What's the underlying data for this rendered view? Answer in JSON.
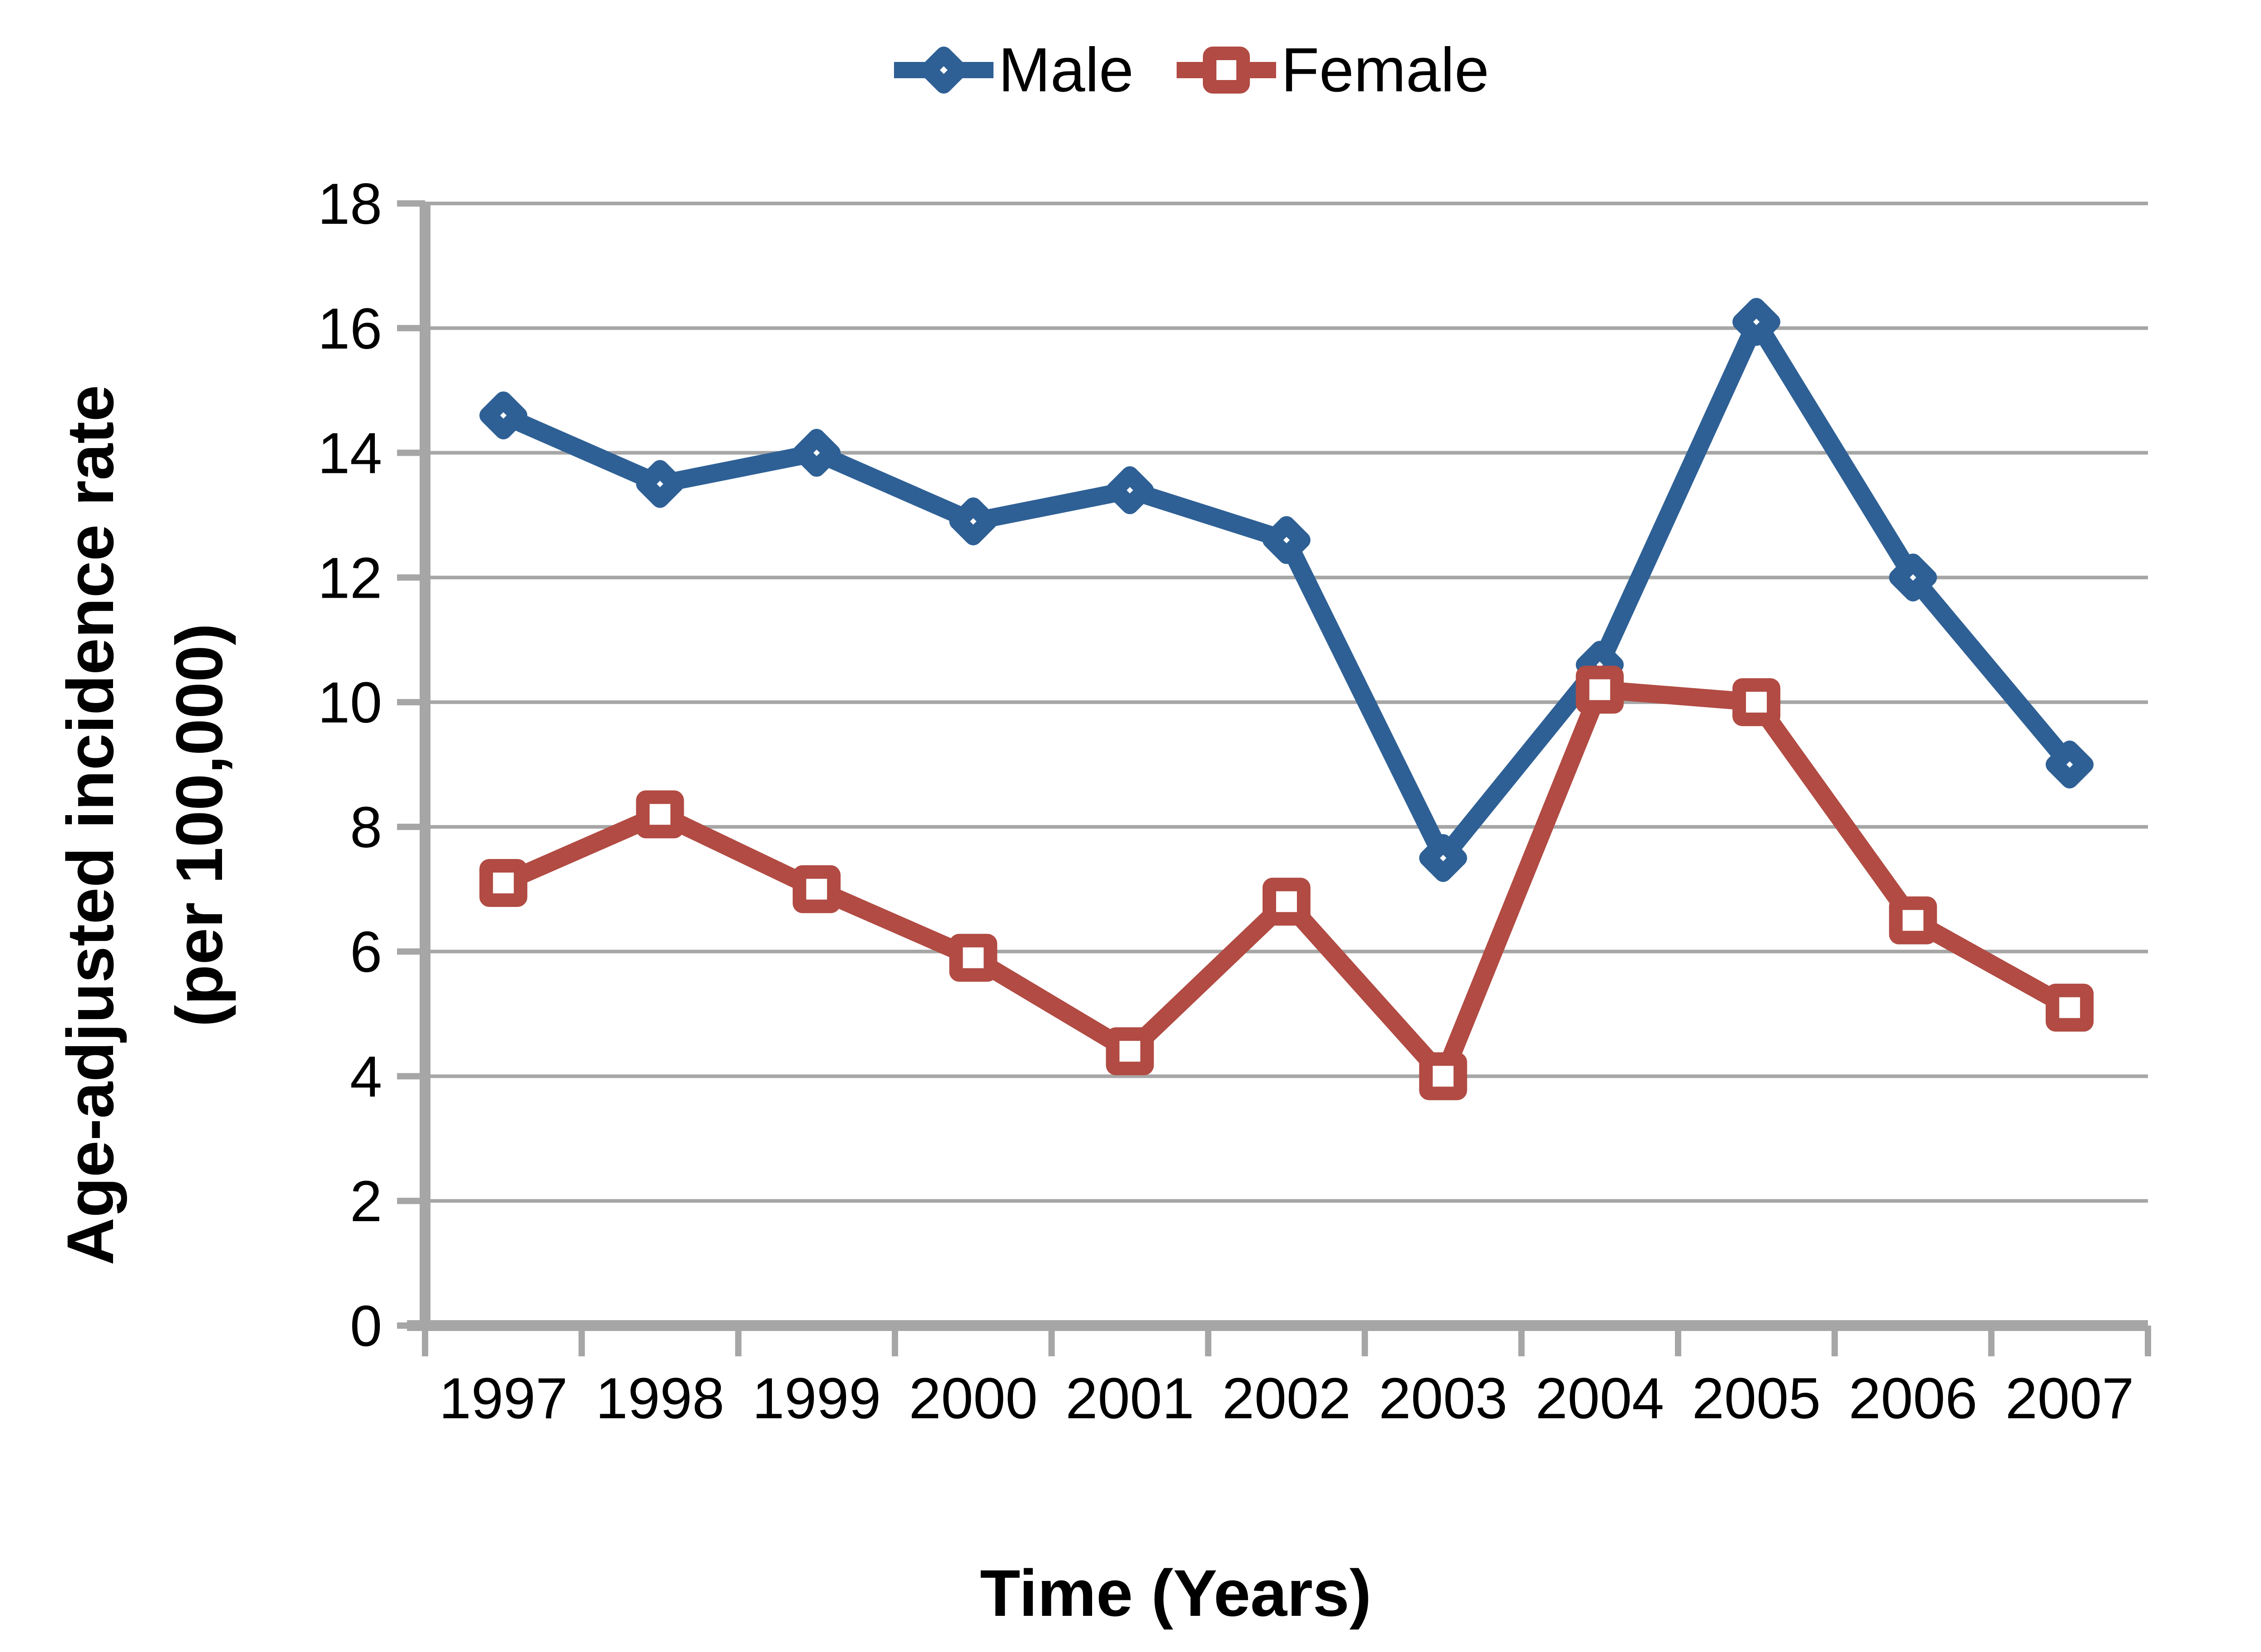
{
  "chart_data": {
    "type": "line",
    "title": "",
    "categories": [
      "1997",
      "1998",
      "1999",
      "2000",
      "2001",
      "2002",
      "2003",
      "2004",
      "2005",
      "2006",
      "2007"
    ],
    "series": [
      {
        "name": "Male",
        "marker": "diamond",
        "color": "#2E6095",
        "values": [
          14.6,
          13.5,
          14.0,
          12.9,
          13.4,
          12.6,
          7.5,
          10.6,
          16.1,
          12.0,
          9.0
        ]
      },
      {
        "name": "Female",
        "marker": "square",
        "color": "#B14B43",
        "values": [
          7.1,
          8.2,
          7.0,
          5.9,
          4.4,
          6.8,
          4.0,
          10.2,
          10.0,
          6.5,
          5.1
        ]
      }
    ],
    "xlabel": "Time (Years)",
    "ylabel_line1": "Age-adjusted incidence rate",
    "ylabel_line2": "(per 100,000)",
    "ylim": [
      0,
      18
    ],
    "ytick_step": 2,
    "ytick_labels": [
      "0",
      "2",
      "4",
      "6",
      "8",
      "10",
      "12",
      "14",
      "16",
      "18"
    ],
    "grid": true,
    "legend_position": "top-center",
    "axis_color": "#A6A6A6",
    "gridline_color": "#A6A6A6",
    "text_color": "#000000",
    "background": "#FFFFFF"
  }
}
